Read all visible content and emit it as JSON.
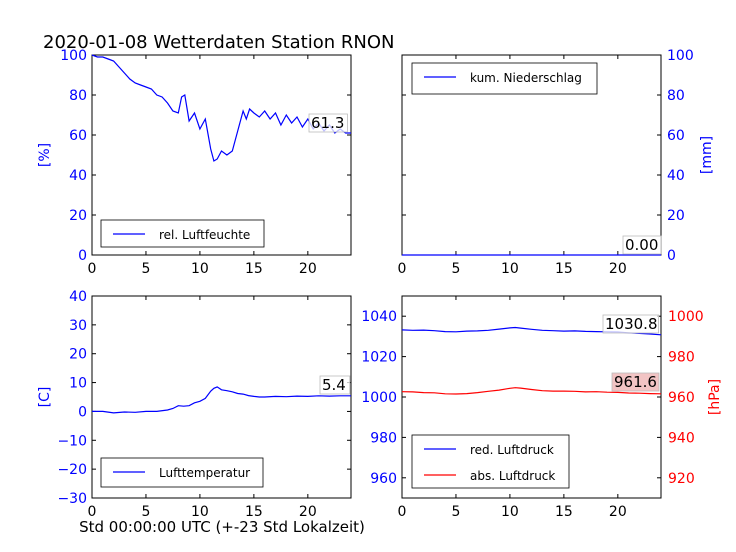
{
  "figure": {
    "title": "2020-01-08 Wetterdaten Station RNON",
    "xlabel": "Std 00:00:00 UTC (+-23 Std Lokalzeit)"
  },
  "colors": {
    "primary": "#0000ff",
    "secondary": "#ff0000",
    "axis": "#000000",
    "value_box_fill": "#f2c4c4"
  },
  "chart_data": [
    {
      "id": "humidity",
      "type": "line",
      "ylabel": "[%]",
      "ylabel_color": "#0000ff",
      "xlim": [
        0,
        24
      ],
      "ylim": [
        0,
        100
      ],
      "x_ticks": [
        0,
        5,
        10,
        15,
        20
      ],
      "y_ticks": [
        0,
        20,
        40,
        60,
        80,
        100
      ],
      "y_tick_color": "#0000ff",
      "legend": "rel. Luftfeuchte",
      "legend_position": "lower-left",
      "end_value": "61.3",
      "series": [
        {
          "name": "rel. Luftfeuchte",
          "color": "#0000ff",
          "x": [
            0,
            0.5,
            1,
            1.5,
            2,
            2.5,
            3,
            3.5,
            4,
            4.5,
            5,
            5.5,
            6,
            6.5,
            7,
            7.5,
            8,
            8.3,
            8.6,
            9,
            9.5,
            10,
            10.5,
            11,
            11.3,
            11.6,
            12,
            12.5,
            13,
            13.5,
            14,
            14.3,
            14.6,
            15,
            15.5,
            16,
            16.5,
            17,
            17.5,
            18,
            18.5,
            19,
            19.5,
            20,
            20.5,
            21,
            21.5,
            22,
            22.5,
            23,
            23.5,
            24
          ],
          "y": [
            100,
            99,
            99,
            98,
            97,
            94,
            91,
            88,
            86,
            85,
            84,
            83,
            80,
            79,
            76,
            72,
            71,
            79,
            80,
            67,
            71,
            63,
            68,
            53,
            47,
            48,
            52,
            50,
            52,
            62,
            72,
            68,
            73,
            71,
            69,
            72,
            68,
            71,
            65,
            70,
            66,
            69,
            64,
            68,
            63,
            66,
            62,
            65,
            61,
            63,
            61,
            61
          ]
        }
      ]
    },
    {
      "id": "precipitation",
      "type": "line",
      "ylabel": "[mm]",
      "ylabel_color": "#0000ff",
      "y_axis_side": "right",
      "xlim": [
        0,
        24
      ],
      "ylim": [
        0,
        100
      ],
      "x_ticks": [
        0,
        5,
        10,
        15,
        20
      ],
      "y_ticks": [
        0,
        20,
        40,
        60,
        80,
        100
      ],
      "y_tick_color": "#0000ff",
      "legend": "kum. Niederschlag",
      "legend_position": "upper-left",
      "end_value": "0.00",
      "series": [
        {
          "name": "kum. Niederschlag",
          "color": "#0000ff",
          "x": [
            0,
            24
          ],
          "y": [
            0,
            0
          ]
        }
      ]
    },
    {
      "id": "temperature",
      "type": "line",
      "ylabel": "[C]",
      "ylabel_color": "#0000ff",
      "xlim": [
        0,
        24
      ],
      "ylim": [
        -30,
        40
      ],
      "x_ticks": [
        0,
        5,
        10,
        15,
        20
      ],
      "y_ticks": [
        -30,
        -20,
        -10,
        0,
        10,
        20,
        30,
        40
      ],
      "y_tick_color": "#0000ff",
      "legend": "Lufttemperatur",
      "legend_position": "lower-left",
      "end_value": "5.4",
      "series": [
        {
          "name": "Lufttemperatur",
          "color": "#0000ff",
          "x": [
            0,
            1,
            2,
            3,
            4,
            5,
            6,
            7,
            7.5,
            8,
            8.5,
            9,
            9.5,
            10,
            10.5,
            11,
            11.3,
            11.6,
            12,
            12.5,
            13,
            13.5,
            14,
            14.5,
            15,
            15.5,
            16,
            17,
            18,
            19,
            20,
            21,
            22,
            23,
            24
          ],
          "y": [
            0,
            0,
            -0.5,
            -0.2,
            -0.3,
            0,
            0,
            0.5,
            1,
            2,
            1.8,
            2,
            3,
            3.5,
            4.5,
            7,
            8,
            8.5,
            7.5,
            7.2,
            6.8,
            6.2,
            6,
            5.5,
            5.2,
            5,
            5,
            5.2,
            5.1,
            5.3,
            5.2,
            5.4,
            5.3,
            5.4,
            5.4
          ]
        }
      ]
    },
    {
      "id": "pressure",
      "type": "line",
      "xlim": [
        0,
        24
      ],
      "ylim": [
        950,
        1050
      ],
      "x_ticks": [
        0,
        5,
        10,
        15,
        20
      ],
      "y_ticks": [
        960,
        980,
        1000,
        1020,
        1040
      ],
      "y_tick_color": "#0000ff",
      "ylabel_right": "[hPa]",
      "ylabel_right_color": "#ff0000",
      "ylim_right": [
        910,
        1010
      ],
      "y_ticks_right": [
        920,
        940,
        960,
        980,
        1000
      ],
      "y_tick_right_color": "#ff0000",
      "legend_position": "lower-left",
      "series": [
        {
          "name": "red. Luftdruck",
          "color": "#0000ff",
          "axis": "left",
          "end_value": "1030.8",
          "x": [
            0,
            1,
            2,
            3,
            4,
            5,
            6,
            7,
            8,
            9,
            10,
            10.5,
            11,
            12,
            13,
            14,
            15,
            16,
            17,
            18,
            19,
            20,
            21,
            22,
            23,
            24
          ],
          "y": [
            1033.2,
            1033,
            1033.1,
            1032.8,
            1032.4,
            1032.3,
            1032.6,
            1032.7,
            1033,
            1033.6,
            1034.2,
            1034.4,
            1034.1,
            1033.5,
            1033,
            1032.8,
            1032.6,
            1032.7,
            1032.5,
            1032.4,
            1032.3,
            1032.2,
            1031.8,
            1031.5,
            1031.2,
            1030.8
          ]
        },
        {
          "name": "abs. Luftdruck",
          "color": "#ff0000",
          "axis": "right",
          "end_value": "961.6",
          "x": [
            0,
            1,
            2,
            3,
            4,
            5,
            6,
            7,
            8,
            9,
            10,
            10.5,
            11,
            12,
            13,
            14,
            15,
            16,
            17,
            18,
            19,
            20,
            21,
            22,
            23,
            24
          ],
          "y": [
            962.6,
            962.5,
            962.2,
            962.1,
            961.6,
            961.5,
            961.7,
            962.2,
            962.8,
            963.4,
            964.3,
            964.6,
            964.4,
            963.7,
            963.1,
            962.9,
            962.9,
            962.8,
            962.5,
            962.6,
            962.4,
            962.3,
            962,
            961.9,
            961.7,
            961.6
          ]
        }
      ]
    }
  ]
}
